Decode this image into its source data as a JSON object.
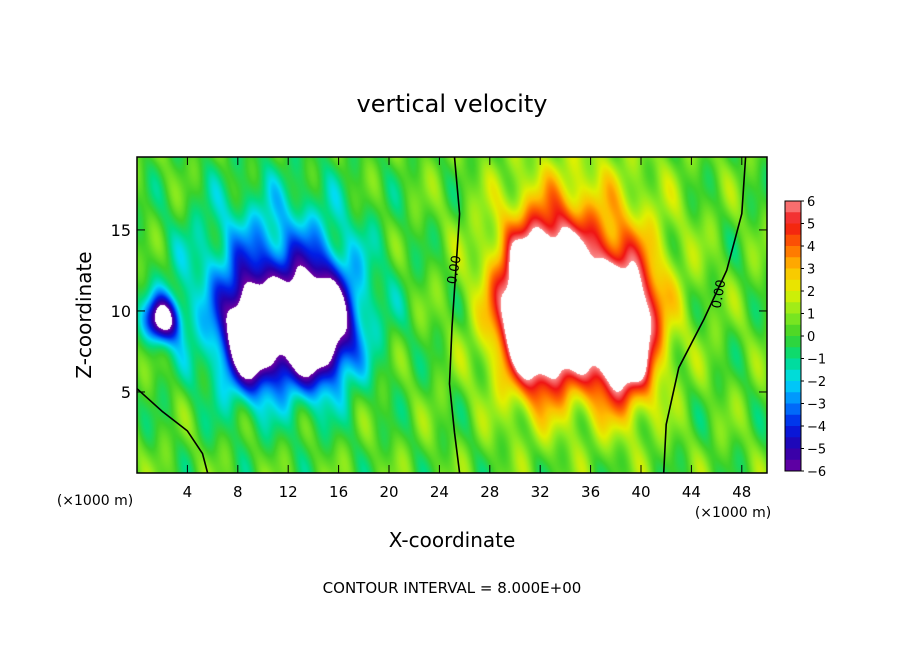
{
  "chart_data": {
    "type": "heatmap",
    "title": "vertical velocity",
    "xlabel": "X-coordinate",
    "ylabel": "Z-coordinate",
    "x_unit_left": "(×1000 m)",
    "x_unit_right": "(×1000 m)",
    "footer": "CONTOUR INTERVAL = 8.000E+00",
    "xlim": [
      0,
      50
    ],
    "ylim": [
      0,
      19.5
    ],
    "x_ticks": [
      4,
      8,
      12,
      16,
      20,
      24,
      28,
      32,
      36,
      40,
      44,
      48
    ],
    "x_tick_labels": [
      "4",
      "8",
      "12",
      "16",
      "20",
      "24",
      "28",
      "32",
      "36",
      "40",
      "44",
      "48"
    ],
    "y_ticks": [
      5,
      10,
      15
    ],
    "y_tick_labels": [
      "5",
      "10",
      "15"
    ],
    "contour_labels": [
      {
        "text": "0.00",
        "x": 25.5,
        "y": 12.5
      },
      {
        "text": "0.00",
        "x": 46.5,
        "y": 11.0
      }
    ],
    "colorbar": {
      "min": -6,
      "max": 6,
      "tick_values": [
        6,
        5,
        4,
        3,
        2,
        1,
        0,
        -1,
        -2,
        -3,
        -4,
        -5,
        -6
      ],
      "tick_labels": [
        "6",
        "5",
        "4",
        "3",
        "2",
        "1",
        "0",
        "−1",
        "−2",
        "−3",
        "−4",
        "−5",
        "−6"
      ],
      "out_of_range_color": "#ffffff"
    },
    "features": [
      {
        "sign": "downdraft",
        "x": 14,
        "y": 9,
        "sx": 2.8,
        "sy": 3.2,
        "amp": -9
      },
      {
        "sign": "downdraft",
        "x": 9,
        "y": 8.5,
        "sx": 2.0,
        "sy": 3.0,
        "amp": -8
      },
      {
        "sign": "downdraft",
        "x": 2,
        "y": 9.5,
        "sx": 1.3,
        "sy": 1.4,
        "amp": -7
      },
      {
        "sign": "updraft",
        "x": 32,
        "y": 10,
        "sx": 3.0,
        "sy": 4.5,
        "amp": 11
      },
      {
        "sign": "updraft",
        "x": 38.5,
        "y": 8.5,
        "sx": 2.6,
        "sy": 4.0,
        "amp": 9
      }
    ]
  }
}
